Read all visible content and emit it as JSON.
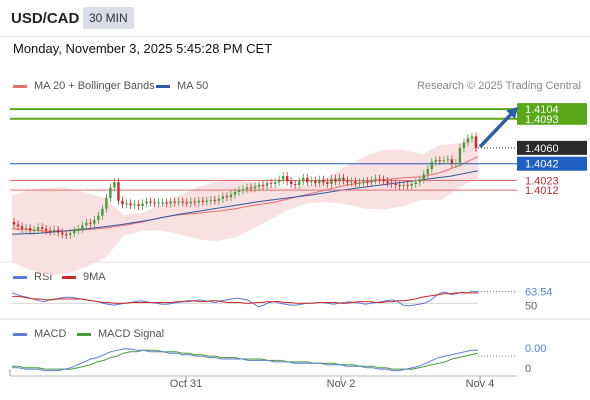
{
  "header": {
    "symbol": "USD/CAD",
    "timeframe": "30 MIN",
    "datetime": "Monday, November 3, 2025 5:45:28 PM CET"
  },
  "legend": {
    "ma20_label": "MA 20 + Bollinger Bands",
    "ma50_label": "MA 50",
    "credit": "Research © 2025 Trading Central",
    "rsi_label": "RSI",
    "rsi_ma_label": "9MA",
    "macd_label": "MACD",
    "macd_signal_label": "MACD Signal"
  },
  "colors": {
    "ma20": "#e46f6f",
    "ma50": "#2c5aa0",
    "bollinger_fill": "#f8d7d7",
    "candle_up": "#4a9b3e",
    "candle_down": "#cc2a2a",
    "resistance": "#5aa71a",
    "support": "#e46f6f",
    "pivot": "#1f5fc4",
    "last_price_bg": "#2b2b2b",
    "arrow": "#2e5ea7",
    "rsi": "#5b7fd6",
    "rsi_ma": "#cc2a2a",
    "macd": "#5b7fd6",
    "macd_signal": "#4a9b3e"
  },
  "chart_data": [
    {
      "type": "candlestick",
      "title": "USD/CAD 30 MIN",
      "x_labels": [
        "Oct 31",
        "Nov 2",
        "Nov 4"
      ],
      "ylim": [
        1.3935,
        1.412
      ],
      "price_levels": [
        {
          "value": 1.4104,
          "label": "1.4104",
          "kind": "resistance"
        },
        {
          "value": 1.4093,
          "label": "1.4093",
          "kind": "resistance"
        },
        {
          "value": 1.406,
          "label": "1.4060",
          "kind": "last"
        },
        {
          "value": 1.4042,
          "label": "1.4042",
          "kind": "pivot"
        },
        {
          "value": 1.4023,
          "label": "1.4023",
          "kind": "support"
        },
        {
          "value": 1.4012,
          "label": "1.4012",
          "kind": "support"
        }
      ],
      "close": [
        1.3973,
        1.3971,
        1.3968,
        1.3969,
        1.3966,
        1.3967,
        1.397,
        1.3968,
        1.3966,
        1.3965,
        1.3967,
        1.3964,
        1.3962,
        1.3961,
        1.3963,
        1.3966,
        1.3968,
        1.3972,
        1.3975,
        1.3974,
        1.3978,
        1.3983,
        1.3991,
        1.4003,
        1.4015,
        1.4021,
        1.4,
        1.3996,
        1.3997,
        1.3995,
        1.3996,
        1.3994,
        1.3997,
        1.3999,
        1.3998,
        1.3997,
        1.3998,
        1.3998,
        1.3997,
        1.3999,
        1.3998,
        1.3999,
        1.3998,
        1.3997,
        1.3999,
        1.3998,
        1.4,
        1.3999,
        1.4,
        1.4001,
        1.4,
        1.4002,
        1.4005,
        1.4004,
        1.4007,
        1.401,
        1.4012,
        1.4013,
        1.4015,
        1.4014,
        1.4016,
        1.4018,
        1.4017,
        1.402,
        1.4019,
        1.4021,
        1.4024,
        1.4028,
        1.4022,
        1.4019,
        1.4018,
        1.4022,
        1.4026,
        1.4021,
        1.4023,
        1.402,
        1.4024,
        1.4021,
        1.4019,
        1.4025,
        1.4022,
        1.4026,
        1.4023,
        1.4021,
        1.4022,
        1.402,
        1.4021,
        1.4022,
        1.4021,
        1.4023,
        1.4025,
        1.4024,
        1.4022,
        1.402,
        1.4019,
        1.4018,
        1.4017,
        1.4018,
        1.4017,
        1.4019,
        1.4021,
        1.4024,
        1.403,
        1.4036,
        1.4044,
        1.4046,
        1.4045,
        1.4046,
        1.4047,
        1.4042,
        1.4043,
        1.406,
        1.4066,
        1.4071,
        1.4073,
        1.406
      ],
      "ma20": [
        1.3968,
        1.3967,
        1.3965,
        1.3966,
        1.3967,
        1.3969,
        1.3972,
        1.3976,
        1.3981,
        1.3984,
        1.3986,
        1.3988,
        1.3991,
        1.3995,
        1.3998,
        1.4003,
        1.4008,
        1.4013,
        1.4018,
        1.4021,
        1.4024,
        1.4026,
        1.4027,
        1.4032,
        1.404,
        1.405
      ],
      "ma50": [
        1.3962,
        1.3963,
        1.3966,
        1.3969,
        1.3973,
        1.3978,
        1.3984,
        1.3989,
        1.3994,
        1.3999,
        1.4003,
        1.4007,
        1.4012,
        1.4016,
        1.402,
        1.4024,
        1.4028,
        1.4034
      ],
      "rsi": {
        "last": 63.54,
        "label": "63.54",
        "reference": 50,
        "reference_label": "50",
        "values": [
          62,
          60,
          58,
          57,
          55,
          53,
          52,
          54,
          55,
          56,
          57,
          57,
          56,
          55,
          54,
          53,
          52,
          50,
          49,
          48,
          49,
          50,
          51,
          52,
          53,
          52,
          51,
          50,
          49,
          49,
          50,
          51,
          52,
          52,
          53,
          54,
          53,
          52,
          51,
          53,
          54,
          55,
          56,
          55,
          54,
          50,
          46,
          48,
          51,
          52,
          50,
          49,
          48,
          48,
          49,
          50,
          50,
          51,
          51,
          50,
          49,
          50,
          51,
          52,
          51,
          50,
          49,
          50,
          51,
          52,
          53,
          54,
          52,
          48,
          47,
          48,
          49,
          50,
          53,
          58,
          62,
          63,
          60,
          61,
          63,
          62,
          64,
          63.54
        ],
        "ma9": [
          58,
          58,
          57,
          56,
          55,
          55,
          54,
          54,
          55,
          55,
          55,
          55,
          55,
          54,
          53,
          52,
          51,
          51,
          50,
          50,
          50,
          51,
          51,
          51,
          51,
          51,
          51,
          51,
          51,
          52,
          52,
          53,
          53,
          52,
          52,
          53,
          53,
          52,
          51,
          51,
          51,
          50,
          50,
          51,
          51,
          52,
          52,
          52,
          51,
          51,
          50,
          50,
          50,
          50,
          51,
          51,
          51,
          51,
          50,
          50,
          51,
          52,
          52,
          52,
          51,
          51,
          52,
          52,
          53,
          53,
          54,
          55,
          57,
          58,
          59,
          60,
          61,
          61,
          62,
          62,
          62,
          62,
          62
        ]
      },
      "macd": {
        "last": 0.0,
        "label": "0.00",
        "zero_label": "0",
        "values": [
          -8,
          -8,
          -9,
          -9,
          -9,
          -10,
          -10,
          -10,
          -9,
          -8,
          -6,
          -4,
          -2,
          -1,
          1,
          3,
          4,
          5,
          5,
          4,
          4,
          3,
          3,
          3,
          2,
          2,
          1,
          1,
          0,
          0,
          -1,
          -1,
          -2,
          -2,
          -2,
          -2,
          -3,
          -3,
          -3,
          -3,
          -4,
          -4,
          -4,
          -5,
          -5,
          -5,
          -5,
          -5,
          -6,
          -6,
          -6,
          -7,
          -7,
          -7,
          -8,
          -8,
          -9,
          -9,
          -10,
          -10,
          -9,
          -8,
          -7,
          -5,
          -3,
          -1,
          0,
          1,
          2,
          3,
          4,
          4
        ],
        "signal": [
          -7,
          -7,
          -8,
          -8,
          -8,
          -9,
          -9,
          -9,
          -9,
          -9,
          -8,
          -7,
          -6,
          -4,
          -3,
          -1,
          0,
          2,
          3,
          3,
          4,
          4,
          4,
          3,
          3,
          3,
          2,
          2,
          1,
          1,
          0,
          0,
          -1,
          -1,
          -1,
          -2,
          -2,
          -2,
          -2,
          -3,
          -3,
          -3,
          -4,
          -4,
          -4,
          -4,
          -5,
          -5,
          -5,
          -5,
          -6,
          -6,
          -6,
          -7,
          -7,
          -7,
          -8,
          -8,
          -9,
          -9,
          -9,
          -9,
          -8,
          -7,
          -6,
          -5,
          -4,
          -2,
          -1,
          0,
          1,
          2
        ]
      }
    }
  ]
}
